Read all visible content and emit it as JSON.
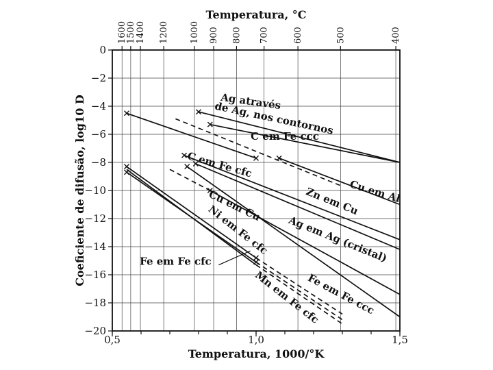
{
  "chart_data": {
    "type": "line",
    "title": "",
    "xlabel": "Temperatura, 1000/°K",
    "ylabel": "Coeficiente de difusão, log10 D",
    "top_axis_label": "Temperatura, °C",
    "xlim": [
      0.5,
      1.5
    ],
    "ylim": [
      -20,
      0
    ],
    "grid": true,
    "x_ticks": [
      {
        "value": 0.5,
        "label": "0,5"
      },
      {
        "value": 1.0,
        "label": "1,0"
      },
      {
        "value": 1.5,
        "label": "1,5"
      }
    ],
    "y_ticks": [
      {
        "value": 0,
        "label": "0"
      },
      {
        "value": -2,
        "label": "−2"
      },
      {
        "value": -4,
        "label": "−4"
      },
      {
        "value": -6,
        "label": "−6"
      },
      {
        "value": -8,
        "label": "−8"
      },
      {
        "value": -10,
        "label": "−10"
      },
      {
        "value": -12,
        "label": "−12"
      },
      {
        "value": -14,
        "label": "−14"
      },
      {
        "value": -16,
        "label": "−16"
      },
      {
        "value": -18,
        "label": "−18"
      },
      {
        "value": -20,
        "label": "−20"
      }
    ],
    "top_ticks": [
      {
        "celsius": 1600,
        "label": "1600"
      },
      {
        "celsius": 1500,
        "label": "1500"
      },
      {
        "celsius": 1400,
        "label": "1400"
      },
      {
        "celsius": 1200,
        "label": "1200"
      },
      {
        "celsius": 1000,
        "label": "1000"
      },
      {
        "celsius": 900,
        "label": "900"
      },
      {
        "celsius": 800,
        "label": "800"
      },
      {
        "celsius": 700,
        "label": "700"
      },
      {
        "celsius": 600,
        "label": "600"
      },
      {
        "celsius": 500,
        "label": "500"
      },
      {
        "celsius": 400,
        "label": "400"
      }
    ],
    "series": [
      {
        "name": "Ag através de Ag, nos contornos",
        "style": "solid",
        "points": [
          [
            0.8,
            -4.4
          ],
          [
            1.5,
            -8.0
          ]
        ]
      },
      {
        "name": "C em Fe ccc",
        "style": "solid",
        "points": [
          [
            0.84,
            -5.3
          ],
          [
            1.5,
            -8.0
          ]
        ]
      },
      {
        "name": "C em Fe cfc",
        "style": "solid",
        "points": [
          [
            0.55,
            -4.5
          ],
          [
            1.0,
            -7.7
          ]
        ]
      },
      {
        "name": "Cu em Al",
        "style": "dashed",
        "points": [
          [
            0.72,
            -4.9
          ],
          [
            1.3,
            -9.7
          ]
        ]
      },
      {
        "name": "Cu em Al",
        "style": "solid",
        "points": [
          [
            1.08,
            -7.7
          ],
          [
            1.5,
            -11.0
          ]
        ]
      },
      {
        "name": "Zn em Cu",
        "style": "solid",
        "points": [
          [
            0.75,
            -7.5
          ],
          [
            1.5,
            -13.5
          ]
        ]
      },
      {
        "name": "Cu em Cu",
        "style": "solid",
        "points": [
          [
            0.79,
            -8.1
          ],
          [
            1.5,
            -14.2
          ]
        ]
      },
      {
        "name": "Ag em Ag (cristal)",
        "style": "dashed",
        "points": [
          [
            0.7,
            -8.5
          ],
          [
            0.84,
            -10.0
          ]
        ]
      },
      {
        "name": "Ag em Ag (cristal)",
        "style": "solid",
        "points": [
          [
            0.84,
            -10.0
          ],
          [
            1.5,
            -17.4
          ]
        ]
      },
      {
        "name": "Fe em Fe ccc",
        "style": "solid",
        "points": [
          [
            0.76,
            -8.3
          ],
          [
            1.5,
            -19.0
          ]
        ]
      },
      {
        "name": "Ni em Fe cfc",
        "style": "solid",
        "points": [
          [
            0.55,
            -8.3
          ],
          [
            1.0,
            -14.8
          ]
        ]
      },
      {
        "name": "Ni em Fe cfc",
        "style": "dashed",
        "points": [
          [
            1.0,
            -14.8
          ],
          [
            1.3,
            -18.8
          ]
        ]
      },
      {
        "name": "Fe em Fe cfc",
        "style": "solid",
        "points": [
          [
            0.55,
            -8.7
          ],
          [
            1.0,
            -15.1
          ]
        ]
      },
      {
        "name": "Fe em Fe cfc",
        "style": "dashed",
        "points": [
          [
            1.0,
            -15.1
          ],
          [
            1.3,
            -19.2
          ]
        ]
      },
      {
        "name": "Mn em Fe cfc",
        "style": "solid",
        "points": [
          [
            0.55,
            -8.5
          ],
          [
            1.0,
            -15.3
          ]
        ]
      },
      {
        "name": "Mn em Fe cfc",
        "style": "dashed",
        "points": [
          [
            1.0,
            -15.3
          ],
          [
            1.3,
            -19.5
          ]
        ]
      }
    ],
    "markers": [
      [
        0.55,
        -4.5
      ],
      [
        0.8,
        -4.4
      ],
      [
        0.84,
        -5.3
      ],
      [
        1.0,
        -7.7
      ],
      [
        1.08,
        -7.7
      ],
      [
        0.75,
        -7.5
      ],
      [
        0.76,
        -8.3
      ],
      [
        0.79,
        -8.1
      ],
      [
        0.84,
        -10.0
      ],
      [
        0.55,
        -8.3
      ],
      [
        0.55,
        -8.7
      ],
      [
        1.0,
        -14.8
      ],
      [
        1.0,
        -15.1
      ]
    ],
    "annotations": [
      {
        "id": "ag-line1",
        "text": "Ag através",
        "x": 0.98,
        "y": -3.9,
        "angle": 8
      },
      {
        "id": "ag-line2",
        "text": "de Ag, nos contornos",
        "x": 1.06,
        "y": -5.1,
        "angle": 12
      },
      {
        "id": "c-fe-ccc",
        "text": "C em Fe ccc",
        "x": 1.1,
        "y": -6.4,
        "angle": 0
      },
      {
        "id": "c-fe-cfc",
        "text": "C em Fe cfc",
        "x": 0.87,
        "y": -8.4,
        "angle": 16
      },
      {
        "id": "cu-al",
        "text": "Cu em Al",
        "x": 1.41,
        "y": -10.3,
        "angle": 17
      },
      {
        "id": "zn-cu",
        "text": "Zn em Cu",
        "x": 1.26,
        "y": -11.0,
        "angle": 22
      },
      {
        "id": "cu-cu",
        "text": "Cu em Cu",
        "x": 0.92,
        "y": -11.3,
        "angle": 26
      },
      {
        "id": "ag-ag",
        "text": "Ag em Ag (cristal)",
        "x": 1.28,
        "y": -13.7,
        "angle": 22
      },
      {
        "id": "fe-fe-ccc",
        "text": "Fe em Fe ccc",
        "x": 1.29,
        "y": -17.6,
        "angle": 28
      },
      {
        "id": "ni-fe",
        "text": "Ni em Fe cfc",
        "x": 0.93,
        "y": -13.0,
        "angle": 38
      },
      {
        "id": "fe-fe-cfc",
        "text": "Fe em Fe cfc",
        "x": 0.72,
        "y": -15.3,
        "angle": 0
      },
      {
        "id": "mn-fe",
        "text": "Mn em Fe cfc",
        "x": 1.1,
        "y": -17.8,
        "angle": 38
      }
    ]
  }
}
